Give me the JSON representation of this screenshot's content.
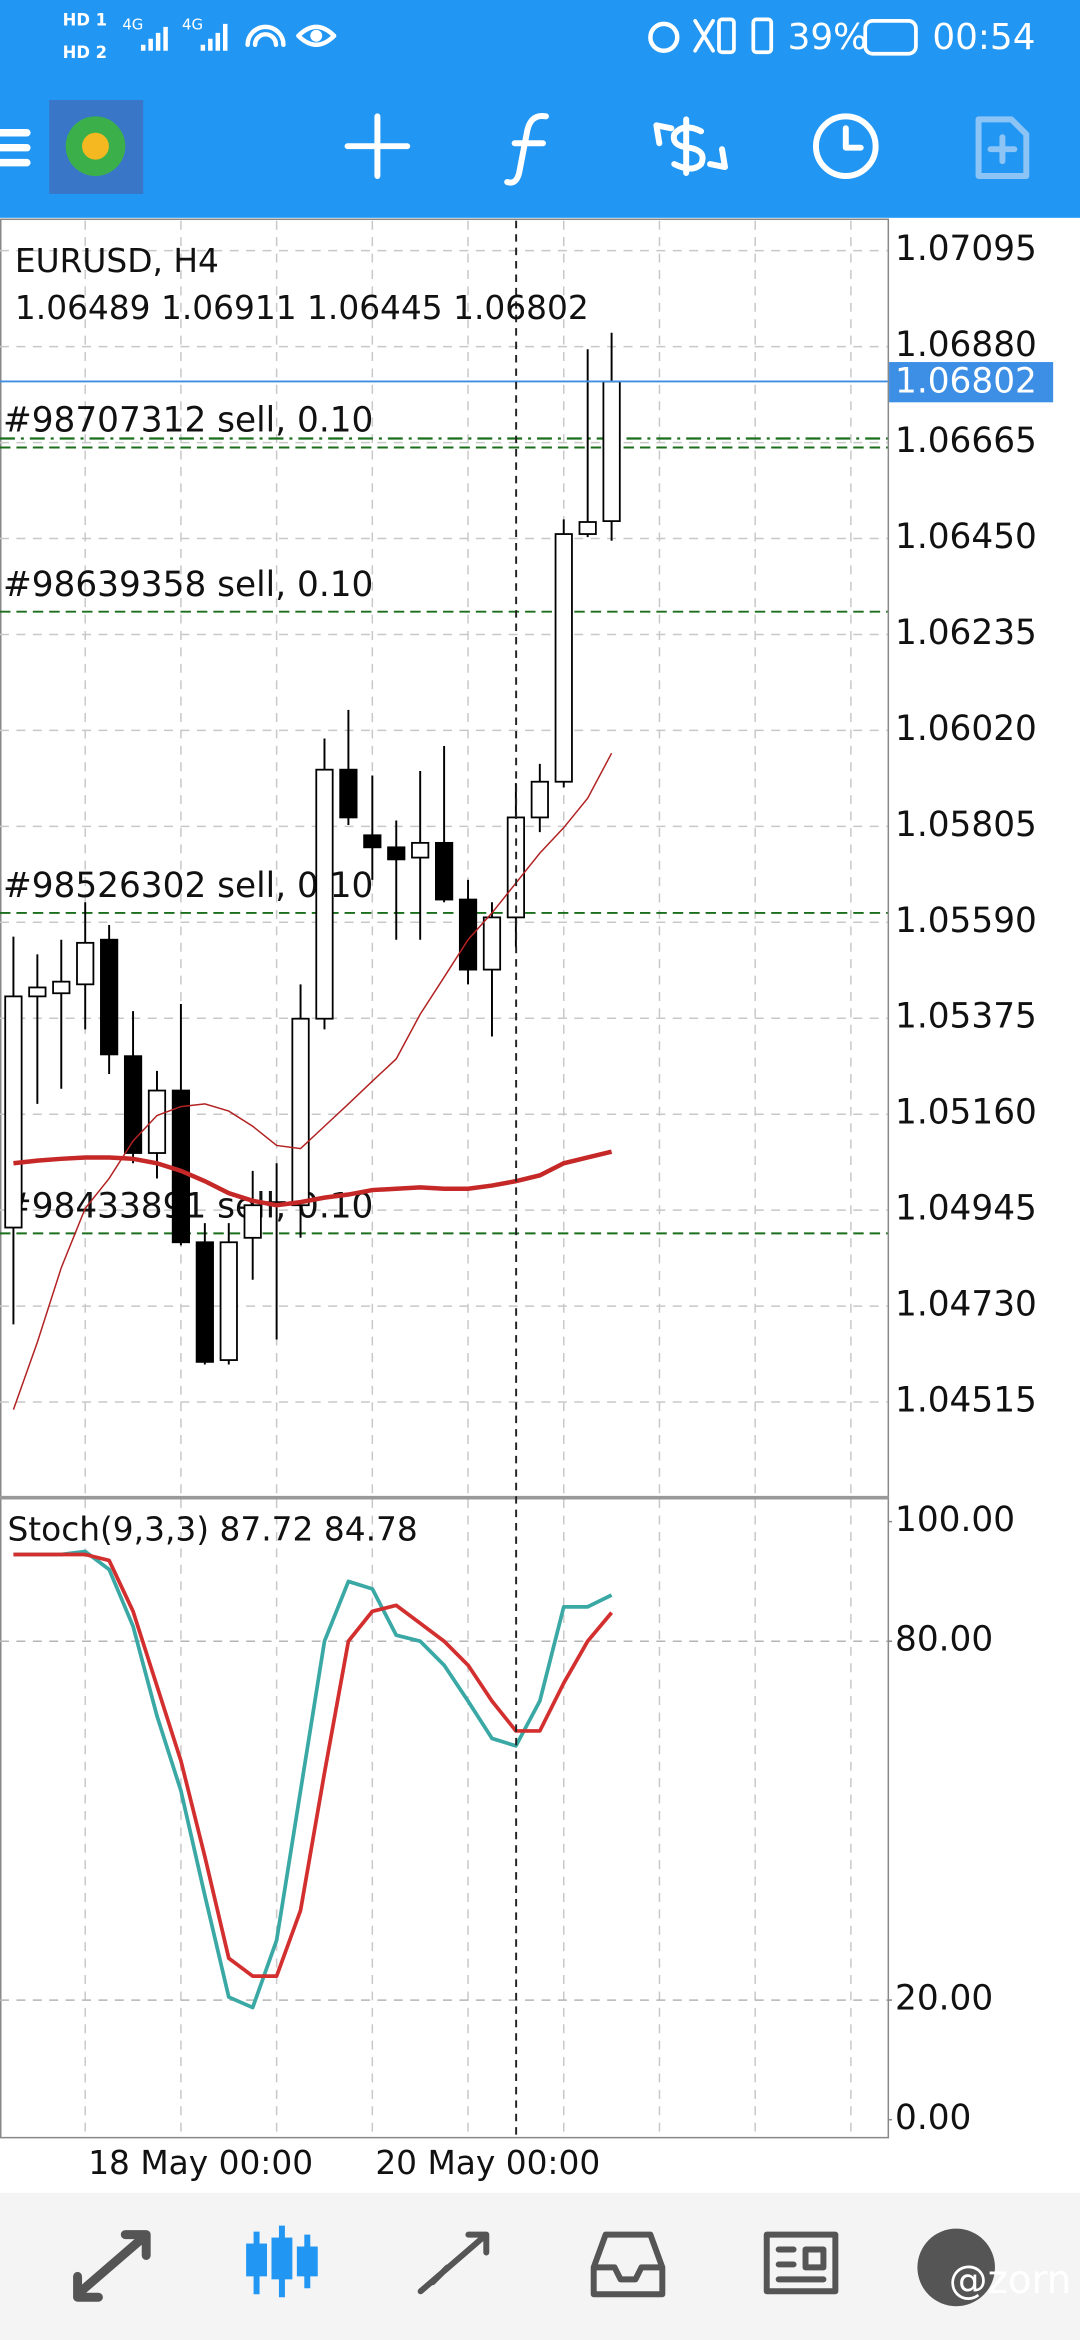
{
  "status_bar": {
    "network_labels": [
      "HD 1",
      "HD 2",
      "4G",
      "4G"
    ],
    "battery": "39%",
    "time": "00:54"
  },
  "watermark": "@zorn",
  "chart_data": [
    {
      "type": "candlestick",
      "title": "EURUSD, H4",
      "categories": [
        null,
        null,
        null,
        "18 May 00:00",
        null,
        null,
        null,
        null,
        null,
        null,
        null,
        null,
        null,
        null,
        null,
        "20 May 00:00",
        null,
        null,
        null,
        null,
        null,
        null,
        null,
        null,
        null,
        null
      ],
      "open": [
        1.04906,
        1.05424,
        1.05431,
        1.05451,
        1.05551,
        1.0529,
        1.05073,
        1.05213,
        1.04873,
        1.04609,
        1.04883,
        1.04956,
        1.04956,
        1.05374,
        1.05932,
        1.05785,
        1.05758,
        1.05735,
        1.05768,
        1.05641,
        1.05484,
        1.05601,
        1.05825,
        1.05905,
        1.0646,
        1.06489
      ],
      "high": [
        1.05558,
        1.05518,
        1.05551,
        1.05635,
        1.05584,
        1.05391,
        1.05257,
        1.05407,
        1.04916,
        1.04916,
        1.05033,
        1.0505,
        1.05451,
        1.06002,
        1.06066,
        1.05919,
        1.05818,
        1.05929,
        1.05985,
        1.05685,
        1.05635,
        1.05902,
        1.05945,
        1.06493,
        1.06874,
        1.06911
      ],
      "low": [
        1.04689,
        1.05183,
        1.05217,
        1.0535,
        1.0525,
        1.0505,
        1.05016,
        1.04866,
        1.04599,
        1.04599,
        1.04789,
        1.04655,
        1.04883,
        1.0535,
        1.05808,
        1.05685,
        1.05551,
        1.05551,
        1.05635,
        1.05451,
        1.05334,
        1.05534,
        1.05792,
        1.05892,
        1.06453,
        1.06445
      ],
      "close": [
        1.05424,
        1.05444,
        1.05457,
        1.05544,
        1.05294,
        1.05073,
        1.05213,
        1.04873,
        1.04605,
        1.04873,
        1.04956,
        1.04963,
        1.05374,
        1.05932,
        1.05825,
        1.05758,
        1.05731,
        1.05768,
        1.05641,
        1.05484,
        1.05601,
        1.05825,
        1.05905,
        1.0646,
        1.06487,
        1.06802
      ],
      "up_color": "#ffffff",
      "down_color": "#000000",
      "overlays": [
        {
          "color": "#b22222",
          "width": 1,
          "values": [
            1.04498,
            1.04649,
            1.04816,
            1.04949,
            1.05016,
            1.051,
            1.05157,
            1.05177,
            1.05183,
            1.05167,
            1.05133,
            1.0509,
            1.05083,
            1.05133,
            1.05183,
            1.05234,
            1.05284,
            1.05384,
            1.05467,
            1.05551,
            1.05611,
            1.05678,
            1.05745,
            1.05802,
            1.05868,
            1.05969
          ]
        },
        {
          "color": "#c62828",
          "width": 3,
          "values": [
            1.0505,
            1.05056,
            1.0506,
            1.05063,
            1.05063,
            1.0506,
            1.0505,
            1.05033,
            1.0501,
            1.04983,
            1.04966,
            1.04956,
            1.04963,
            1.04973,
            1.0498,
            1.0499,
            1.04993,
            1.04996,
            1.04993,
            1.04993,
            1.05,
            1.0501,
            1.05023,
            1.0505,
            1.05063,
            1.05076
          ]
        }
      ],
      "orders": [
        {
          "label": "#98707312 sell, 0.10",
          "price": 1.06654
        },
        {
          "label": "#98639358 sell, 0.10",
          "price": 1.06286
        },
        {
          "label": "#98526302 sell, 0.10",
          "price": 1.05611
        },
        {
          "label": "#98433891 sell, 0.10",
          "price": 1.04893
        }
      ],
      "order_color": "#1b6e1b",
      "levels": [
        1.06674
      ],
      "bid_color": "#3d8fe6",
      "ylim": [
        1.04304,
        1.07162
      ],
      "yticks": [
        1.07095,
        {
          "value": 1.0688,
          "label": "1.06880"
        },
        1.06665,
        {
          "value": 1.0645,
          "label": "1.06450"
        },
        1.06235,
        {
          "value": 1.0602,
          "label": "1.06020"
        },
        1.05805,
        {
          "value": 1.0559,
          "label": "1.05590"
        },
        1.05375,
        {
          "value": 1.0516,
          "label": "1.05160"
        },
        1.04945,
        {
          "value": 1.0473,
          "label": "1.04730"
        },
        1.04515
      ],
      "grid": true
    },
    {
      "type": "line",
      "title": "Stoch(9,3,3)",
      "series": [
        {
          "color": "#3aa8a4",
          "values": [
            94.5,
            94.5,
            94.5,
            95,
            92,
            82.5,
            67.5,
            55,
            37.5,
            20.5,
            18.75,
            30,
            55,
            80,
            90,
            88.75,
            81,
            80,
            76,
            70,
            63.75,
            62.5,
            70,
            85.75,
            85.75,
            87.72
          ]
        },
        {
          "color": "#d32f2f",
          "values": [
            94.5,
            94.5,
            94.5,
            94.5,
            93.5,
            85,
            72.5,
            60,
            44,
            27,
            24,
            24,
            35,
            58,
            80,
            85,
            86,
            83,
            80,
            76,
            70,
            65,
            65,
            73,
            80,
            84.78
          ]
        }
      ],
      "levels": [
        80,
        20
      ],
      "ylim": [
        -3,
        103.75
      ],
      "yticks": [
        {
          "value": 100,
          "label": "100.00"
        },
        {
          "value": 80,
          "label": "80.00"
        },
        {
          "value": 20,
          "label": "20.00"
        },
        {
          "value": 0,
          "label": "0.00"
        }
      ]
    }
  ]
}
